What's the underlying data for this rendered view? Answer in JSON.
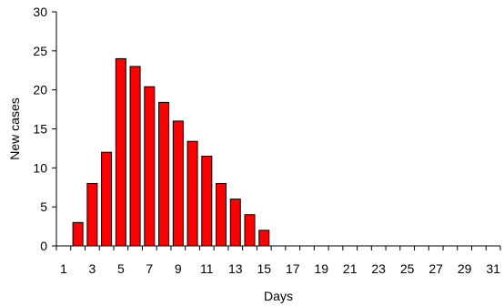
{
  "chart_data": {
    "type": "bar",
    "xlabel": "Days",
    "ylabel": "New cases",
    "x_ticks": [
      1,
      3,
      5,
      7,
      9,
      11,
      13,
      15,
      17,
      19,
      21,
      23,
      25,
      27,
      29,
      31
    ],
    "y_ticks": [
      0,
      5,
      10,
      15,
      20,
      25,
      30
    ],
    "xlim": [
      0.5,
      31.5
    ],
    "ylim": [
      0,
      30
    ],
    "grid": false,
    "legend": "none",
    "bar_color": "#ff0000",
    "bar_edge_color": "#000000",
    "series": [
      {
        "x": [
          2,
          3,
          4,
          5,
          6,
          7,
          8,
          9,
          10,
          11,
          12,
          13,
          14,
          15
        ],
        "values": [
          3,
          8,
          12,
          24,
          23,
          20.4,
          18.4,
          16,
          13.4,
          11.5,
          8,
          6,
          4,
          2
        ]
      }
    ]
  }
}
